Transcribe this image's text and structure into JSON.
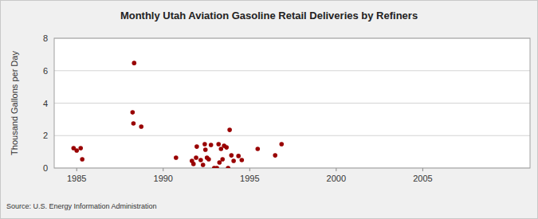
{
  "chart_data": {
    "type": "scatter",
    "title": "Monthly Utah Aviation Gasoline Retail Deliveries by Refiners",
    "y_label": "Thousand Gallons per Day",
    "source": "Source: U.S. Energy Information Administration",
    "x": [
      1984.82,
      1985.0,
      1985.23,
      1985.32,
      1988.23,
      1988.32,
      1988.28,
      1988.73,
      1990.74,
      1991.66,
      1991.75,
      1991.9,
      1991.94,
      1992.17,
      1992.3,
      1992.4,
      1992.44,
      1992.53,
      1992.63,
      1992.76,
      1992.95,
      1993.1,
      1993.2,
      1993.25,
      1993.34,
      1993.43,
      1993.52,
      1993.66,
      1993.75,
      1993.84,
      1993.94,
      1994.07,
      1994.35,
      1994.54,
      1995.46,
      1996.47,
      1996.84
    ],
    "values": [
      1.23,
      1.08,
      1.23,
      0.54,
      3.43,
      6.47,
      2.75,
      2.55,
      0.64,
      0.44,
      0.25,
      0.64,
      1.32,
      0.49,
      0.2,
      1.47,
      1.13,
      0.64,
      0.54,
      1.42,
      0.0,
      0.0,
      1.47,
      0.34,
      1.18,
      0.54,
      1.37,
      1.27,
      0.0,
      2.35,
      0.78,
      0.44,
      0.74,
      0.49,
      1.18,
      0.78,
      1.47
    ],
    "color": "#990000",
    "marker": "circle",
    "xlim": [
      1983.7,
      2011.2
    ],
    "xticks": [
      1985,
      1990,
      1995,
      2000,
      2005
    ],
    "ylim": [
      0,
      8
    ],
    "yticks": [
      0,
      2,
      4,
      6,
      8
    ],
    "grid": true
  }
}
